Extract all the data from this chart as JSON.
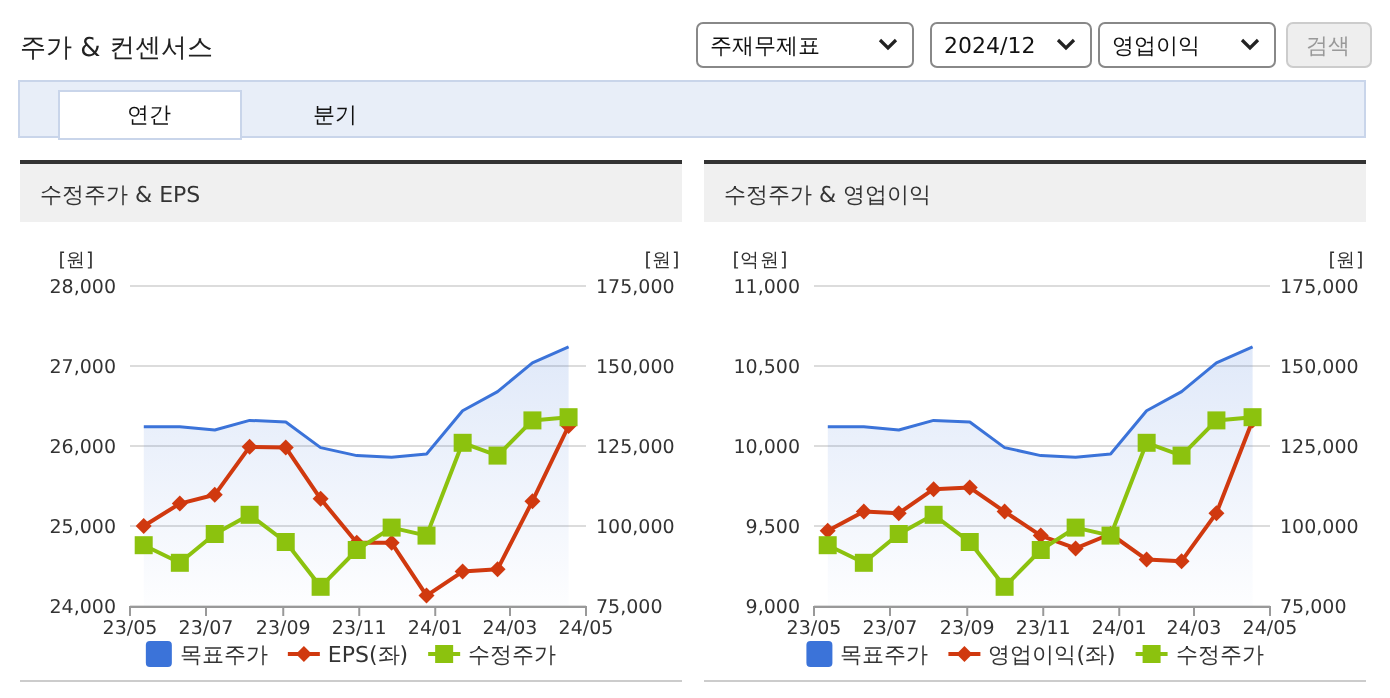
{
  "chart_data": [
    {
      "type": "other",
      "title": "주가 & 컨센서스",
      "annotations": [
        "주재무제표",
        "2024/12",
        "영업이익",
        "검색",
        "연간",
        "분기"
      ]
    },
    {
      "type": "line",
      "title": "수정주가 & EPS",
      "ylabel": "[원]",
      "y2label": "[원]",
      "grid": "y",
      "legend": "bottom",
      "x": [
        "2023-05-12",
        "2023-06-10",
        "2023-07-08",
        "2023-08-05",
        "2023-09-03",
        "2023-10-01",
        "2023-10-30",
        "2023-11-27",
        "2023-12-25",
        "2024-01-23",
        "2024-02-20",
        "2024-03-19",
        "2024-04-17"
      ],
      "xlim": [
        "2023-05-01",
        "2024-05-01"
      ],
      "xticks": [
        {
          "value": "2023-05-01",
          "label": "23/05"
        },
        {
          "value": "2023-07-01",
          "label": "23/07"
        },
        {
          "value": "2023-09-01",
          "label": "23/09"
        },
        {
          "value": "2023-11-01",
          "label": "23/11"
        },
        {
          "value": "2024-01-01",
          "label": "24/01"
        },
        {
          "value": "2024-03-01",
          "label": "24/03"
        },
        {
          "value": "2024-05-01",
          "label": "24/05"
        }
      ],
      "ylim": [
        24000,
        28000
      ],
      "yticks": [
        {
          "value": 24000,
          "label": "24,000"
        },
        {
          "value": 25000,
          "label": "25,000"
        },
        {
          "value": 26000,
          "label": "26,000"
        },
        {
          "value": 27000,
          "label": "27,000"
        },
        {
          "value": 28000,
          "label": "28,000"
        }
      ],
      "y2lim": [
        75000,
        175000
      ],
      "y2ticks": [
        {
          "value": 75000,
          "label": "75,000"
        },
        {
          "value": 100000,
          "label": "100,000"
        },
        {
          "value": 125000,
          "label": "125,000"
        },
        {
          "value": 150000,
          "label": "150,000"
        },
        {
          "value": 175000,
          "label": "175,000"
        }
      ],
      "series": [
        {
          "name": "목표주가",
          "type": "area",
          "axis": "y2",
          "color": "#3b73d9",
          "marker": "none",
          "values": [
            131000,
            131000,
            130000,
            133000,
            132500,
            124500,
            122000,
            121500,
            122500,
            136000,
            142000,
            151000,
            156000
          ]
        },
        {
          "name": "EPS(좌)",
          "type": "line",
          "color": "#d0390f",
          "marker": "diamond",
          "values": [
            25000,
            25280,
            25390,
            25990,
            25980,
            25340,
            24790,
            24790,
            24130,
            24430,
            24460,
            25310,
            26250
          ]
        },
        {
          "name": "수정주가",
          "type": "line",
          "axis": "y2",
          "color": "#8cc20e",
          "marker": "square",
          "values": [
            94000,
            88500,
            97500,
            103500,
            95000,
            81000,
            92500,
            99500,
            97000,
            126000,
            122000,
            133000,
            134000
          ]
        }
      ]
    },
    {
      "type": "line",
      "title": "수정주가 & 영업이익",
      "ylabel": "[억원]",
      "y2label": "[원]",
      "grid": "y",
      "legend": "bottom",
      "x": [
        "2023-05-12",
        "2023-06-10",
        "2023-07-08",
        "2023-08-05",
        "2023-09-03",
        "2023-10-01",
        "2023-10-30",
        "2023-11-27",
        "2023-12-25",
        "2024-01-23",
        "2024-02-20",
        "2024-03-19",
        "2024-04-17"
      ],
      "xlim": [
        "2023-05-01",
        "2024-05-01"
      ],
      "xticks": [
        {
          "value": "2023-05-01",
          "label": "23/05"
        },
        {
          "value": "2023-07-01",
          "label": "23/07"
        },
        {
          "value": "2023-09-01",
          "label": "23/09"
        },
        {
          "value": "2023-11-01",
          "label": "23/11"
        },
        {
          "value": "2024-01-01",
          "label": "24/01"
        },
        {
          "value": "2024-03-01",
          "label": "24/03"
        },
        {
          "value": "2024-05-01",
          "label": "24/05"
        }
      ],
      "ylim": [
        9000,
        11000
      ],
      "yticks": [
        {
          "value": 9000,
          "label": "9,000"
        },
        {
          "value": 9500,
          "label": "9,500"
        },
        {
          "value": 10000,
          "label": "10,000"
        },
        {
          "value": 10500,
          "label": "10,500"
        },
        {
          "value": 11000,
          "label": "11,000"
        }
      ],
      "y2lim": [
        75000,
        175000
      ],
      "y2ticks": [
        {
          "value": 75000,
          "label": "75,000"
        },
        {
          "value": 100000,
          "label": "100,000"
        },
        {
          "value": 125000,
          "label": "125,000"
        },
        {
          "value": 150000,
          "label": "150,000"
        },
        {
          "value": 175000,
          "label": "175,000"
        }
      ],
      "series": [
        {
          "name": "목표주가",
          "type": "area",
          "axis": "y2",
          "color": "#3b73d9",
          "marker": "none",
          "values": [
            131000,
            131000,
            130000,
            133000,
            132500,
            124500,
            122000,
            121500,
            122500,
            136000,
            142000,
            151000,
            156000
          ]
        },
        {
          "name": "영업이익(좌)",
          "type": "line",
          "color": "#d0390f",
          "marker": "diamond",
          "values": [
            9470,
            9590,
            9580,
            9730,
            9740,
            9590,
            9440,
            9360,
            9450,
            9290,
            9280,
            9580,
            10160
          ]
        },
        {
          "name": "수정주가",
          "type": "line",
          "axis": "y2",
          "color": "#8cc20e",
          "marker": "square",
          "values": [
            94000,
            88500,
            97500,
            103500,
            95000,
            81000,
            92500,
            99500,
            97000,
            126000,
            122000,
            133000,
            134000
          ]
        }
      ]
    }
  ]
}
